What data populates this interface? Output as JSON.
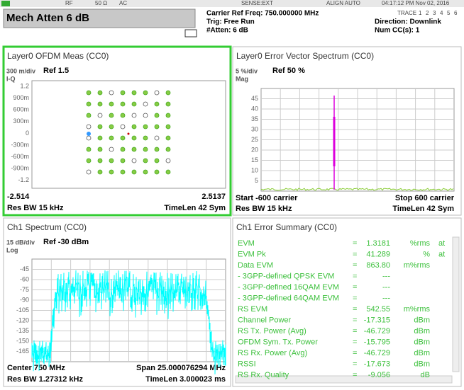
{
  "status_bar": {
    "rf": "RF",
    "impedance": "50 Ω",
    "coupling": "AC",
    "sense": "SENSE:EXT",
    "align": "ALIGN AUTO",
    "timestamp": "04:17:12 PM Nov 02, 2016",
    "trace_label": "TRACE",
    "traces": [
      "1",
      "2",
      "3",
      "4",
      "5",
      "6"
    ]
  },
  "header": {
    "atten_box": "Mech Atten 6 dB",
    "carrier_ref": "Carrier Ref Freq: 750.000000 MHz",
    "trigger": "Trig: Free Run",
    "atten": "#Atten: 6 dB",
    "direction": "Direction: Downlink",
    "num_cc": "Num CC(s): 1"
  },
  "iq_panel": {
    "title": "Layer0 OFDM Meas (CC0)",
    "scale": "300 m/div",
    "ref": "Ref 1.5",
    "mode": "I-Q",
    "y_labels": [
      "1.2",
      "900m",
      "600m",
      "300m",
      "0",
      "-300m",
      "-600m",
      "-900m",
      "-1.2"
    ],
    "x_start": "-2.514",
    "x_stop": "2.5137",
    "res_bw": "Res BW 15 kHz",
    "time_len": "TimeLen 42  Sym"
  },
  "evs_panel": {
    "title": "Layer0 Error Vector Spectrum (CC0)",
    "scale": "5 %/div",
    "ref": "Ref 50 %",
    "mode": "Mag",
    "y_labels": [
      "45",
      "40",
      "35",
      "30",
      "25",
      "20",
      "15",
      "10",
      "5"
    ],
    "x_start": "Start -600  carrier",
    "x_stop": "Stop 600  carrier",
    "res_bw": "Res BW 15 kHz",
    "time_len": "TimeLen 42  Sym"
  },
  "spectrum_panel": {
    "title": "Ch1 Spectrum (CC0)",
    "scale": "15 dB/div",
    "ref": "Ref -30 dBm",
    "mode": "Log",
    "y_labels": [
      "-45",
      "-60",
      "-75",
      "-90",
      "-105",
      "-120",
      "-135",
      "-150",
      "-165"
    ],
    "center": "Center 750 MHz",
    "span": "Span 25.000076294 MHz",
    "res_bw": "Res BW 1.27312 kHz",
    "time_len": "TimeLen 3.000023 ms"
  },
  "summary_panel": {
    "title": "Ch1 Error Summary (CC0)",
    "separator": "=",
    "rows": [
      [
        "EVM",
        "1.3181",
        "%rms",
        "at"
      ],
      [
        "EVM Pk",
        "41.289",
        "%",
        "at"
      ],
      [
        "Data EVM",
        "863.80",
        "m%rms",
        ""
      ],
      [
        "- 3GPP-defined QPSK EVM",
        "---",
        "",
        ""
      ],
      [
        "- 3GPP-defined 16QAM EVM",
        "---",
        "",
        ""
      ],
      [
        "- 3GPP-defined 64QAM EVM",
        "---",
        "",
        ""
      ],
      [
        "RS EVM",
        "542.55",
        "m%rms",
        ""
      ],
      [
        "Channel Power",
        "-17.315",
        "dBm",
        ""
      ],
      [
        "RS Tx. Power (Avg)",
        "-46.729",
        "dBm",
        ""
      ],
      [
        "OFDM Sym. Tx. Power",
        "-15.795",
        "dBm",
        ""
      ],
      [
        "RS Rx. Power (Avg)",
        "-46.729",
        "dBm",
        ""
      ],
      [
        "RSSI",
        "-17.673",
        "dBm",
        ""
      ],
      [
        "RS Rx. Quality",
        "-9.056",
        "dB",
        ""
      ]
    ]
  }
}
